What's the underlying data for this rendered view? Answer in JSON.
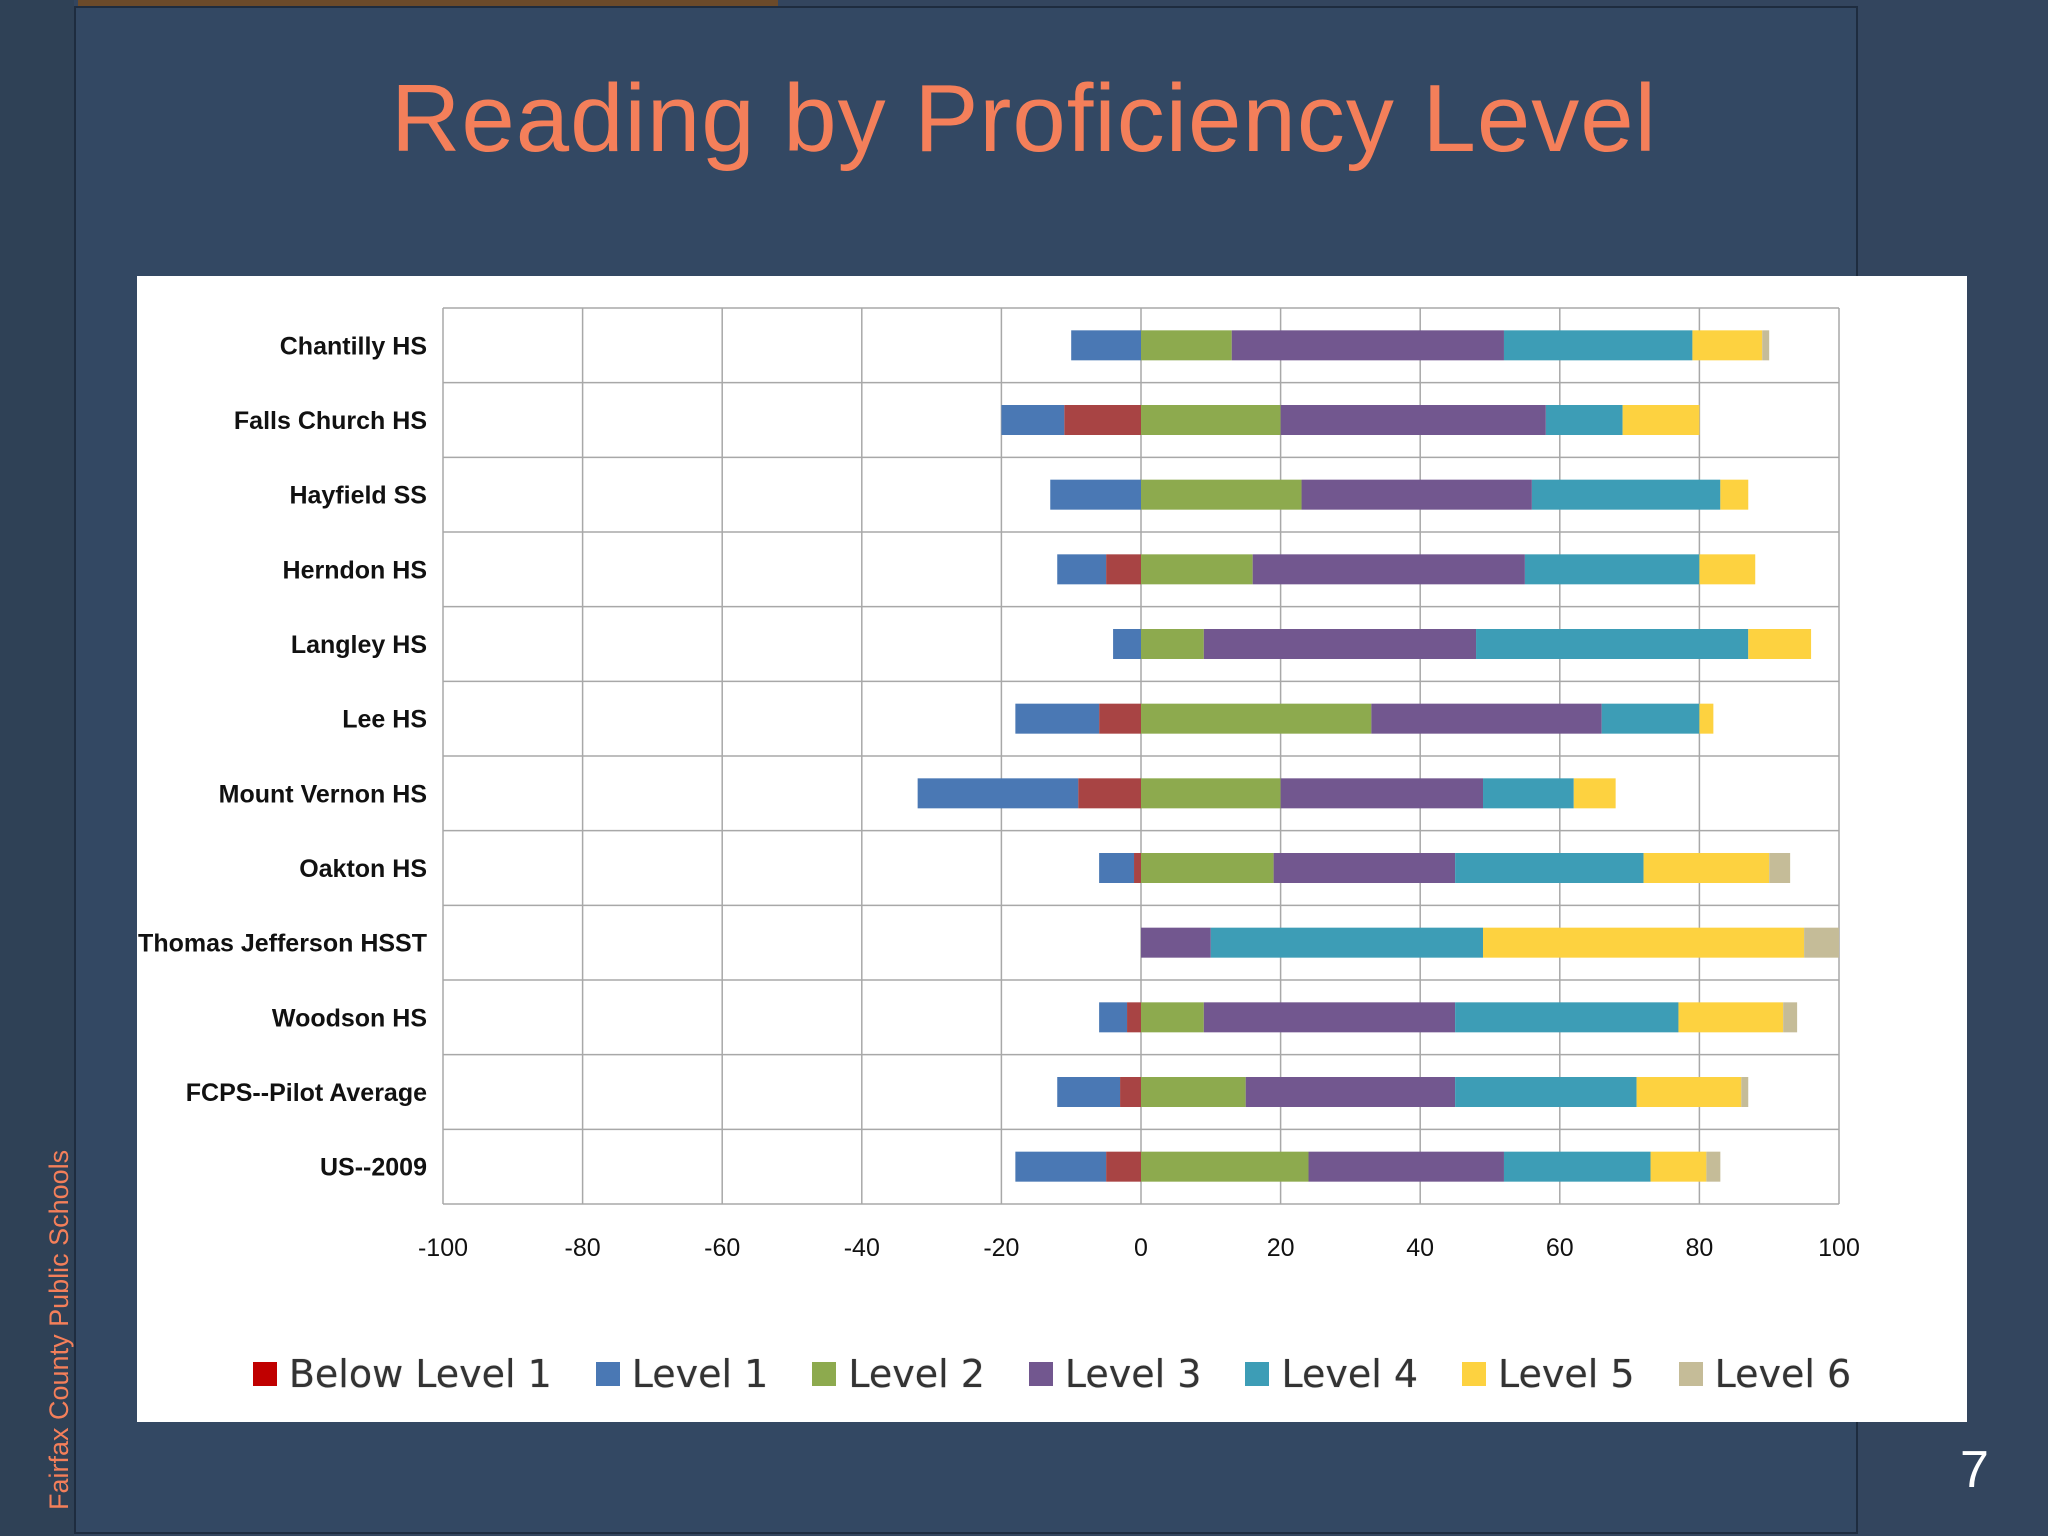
{
  "slide": {
    "title": "Reading by Proficiency Level",
    "side_label": "Fairfax County Public Schools",
    "page_number": "7"
  },
  "chart_data": {
    "type": "bar",
    "orientation": "horizontal",
    "stacked": true,
    "categories": [
      "Chantilly HS",
      "Falls Church HS",
      "Hayfield SS",
      "Herndon HS",
      "Langley HS",
      "Lee HS",
      "Mount Vernon HS",
      "Oakton HS",
      "Thomas Jefferson HSST",
      "Woodson HS",
      "FCPS--Pilot Average",
      "US--2009"
    ],
    "series": [
      {
        "name": "Below Level 1",
        "color": "#a84444",
        "values": [
          0,
          -11,
          0,
          -5,
          0,
          -6,
          -9,
          -1,
          0,
          -2,
          -3,
          -5
        ]
      },
      {
        "name": "Level 1",
        "color": "#4a78b4",
        "values": [
          -10,
          -9,
          -13,
          -7,
          -4,
          -12,
          -23,
          -5,
          0,
          -4,
          -9,
          -13
        ]
      },
      {
        "name": "Level 2",
        "color": "#8daa4e",
        "values": [
          13,
          20,
          23,
          16,
          9,
          33,
          20,
          19,
          0,
          9,
          15,
          24
        ]
      },
      {
        "name": "Level 3",
        "color": "#72578f",
        "values": [
          39,
          38,
          33,
          39,
          39,
          33,
          29,
          26,
          10,
          36,
          30,
          28
        ]
      },
      {
        "name": "Level 4",
        "color": "#3d9db6",
        "values": [
          27,
          11,
          27,
          25,
          39,
          14,
          13,
          27,
          39,
          32,
          26,
          21
        ]
      },
      {
        "name": "Level 5",
        "color": "#fdd240",
        "values": [
          10,
          11,
          4,
          8,
          9,
          2,
          6,
          18,
          46,
          15,
          15,
          8
        ]
      },
      {
        "name": "Level 6",
        "color": "#c5bc98",
        "values": [
          1,
          0,
          0,
          0,
          0,
          0,
          0,
          3,
          5,
          2,
          1,
          2
        ]
      }
    ],
    "xlim": [
      -100,
      100
    ],
    "xticks": [
      -100,
      -80,
      -60,
      -40,
      -20,
      0,
      20,
      40,
      60,
      80,
      100
    ],
    "grid": true,
    "legend_position": "bottom"
  }
}
